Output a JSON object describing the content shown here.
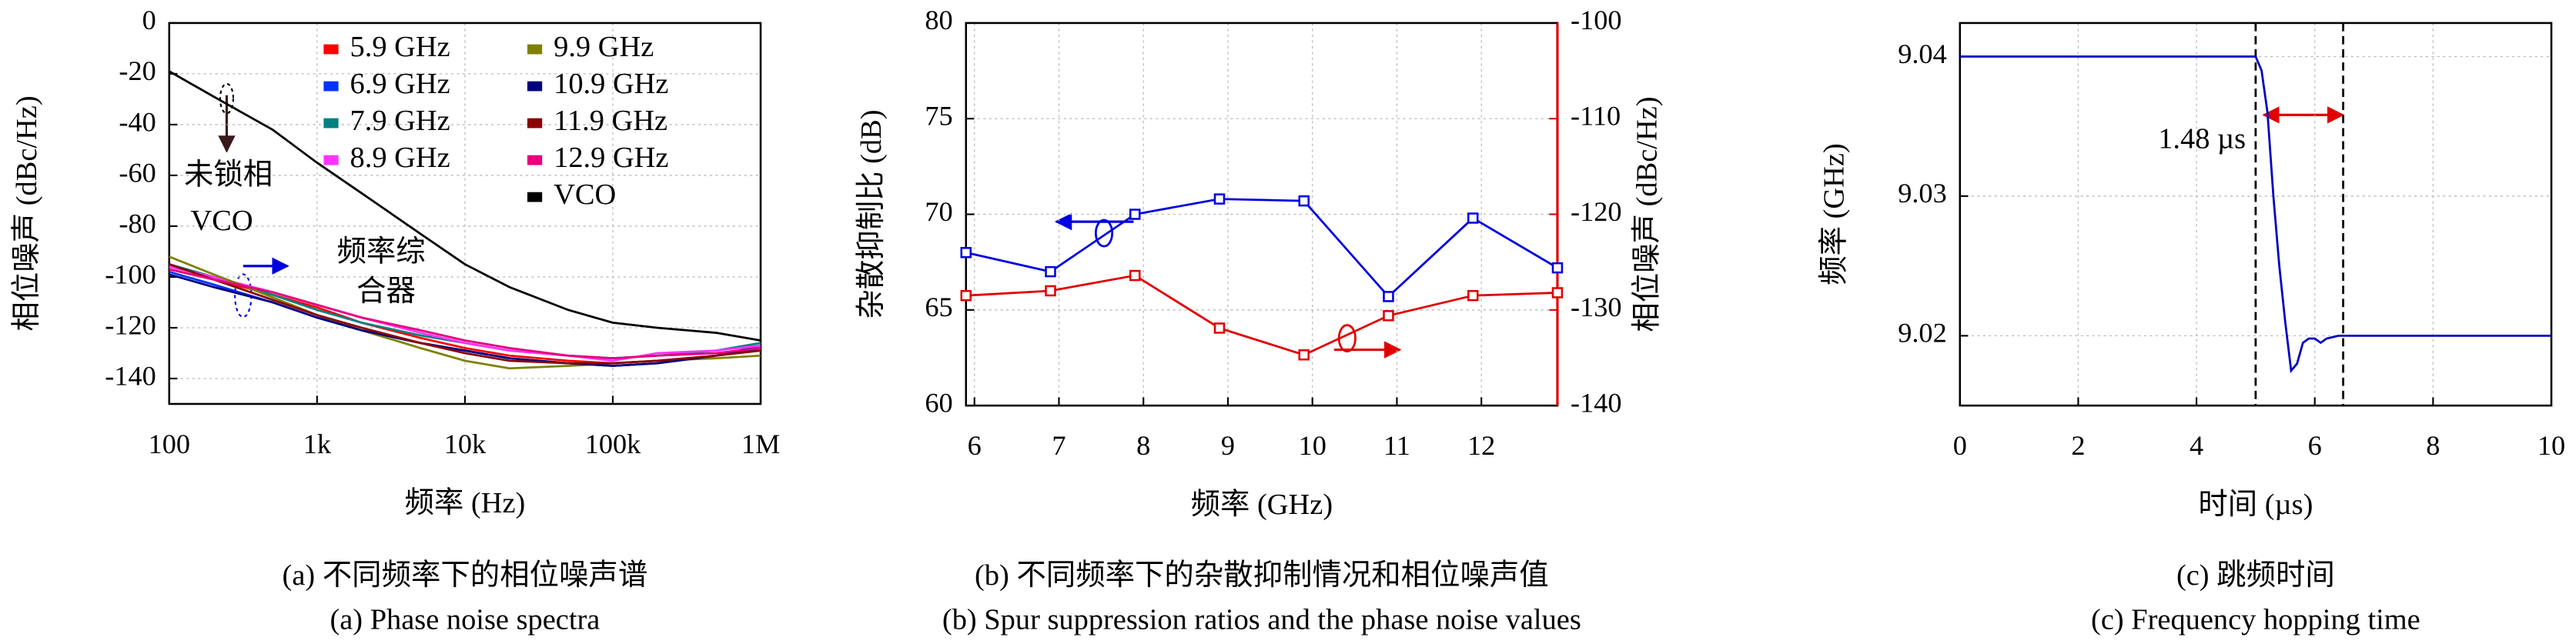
{
  "chart_data": [
    {
      "type": "line",
      "xscale": "log",
      "grid": true,
      "xlabel": "频率 (Hz)",
      "ylabel": "相位噪声 (dBc/Hz)",
      "xlim": [
        100,
        1000000
      ],
      "ylim": [
        -150,
        0
      ],
      "xticks": [
        100,
        {
          "value": 1000,
          "label": "1k"
        },
        {
          "value": 10000,
          "label": "10k"
        },
        {
          "value": 100000,
          "label": "100k"
        },
        {
          "value": 1000000,
          "label": "1M"
        }
      ],
      "yticks": [
        0,
        -20,
        -40,
        -60,
        -80,
        -100,
        -120,
        -140
      ],
      "x": [
        100,
        200,
        500,
        1000,
        2000,
        5000,
        10000,
        20000,
        50000,
        100000,
        200000,
        500000,
        1000000
      ],
      "series": [
        {
          "name": "5.9 GHz",
          "color": "#ff0000",
          "values": [
            -97,
            -101,
            -107,
            -112,
            -118,
            -124,
            -128,
            -131,
            -133,
            -134,
            -133,
            -131,
            -128
          ]
        },
        {
          "name": "6.9 GHz",
          "color": "#0033ff",
          "values": [
            -98,
            -103,
            -110,
            -116,
            -121,
            -126,
            -129,
            -132,
            -134,
            -135,
            -134,
            -131,
            -127
          ]
        },
        {
          "name": "7.9 GHz",
          "color": "#008080",
          "values": [
            -95,
            -100,
            -107,
            -113,
            -118,
            -123,
            -126,
            -129,
            -131,
            -132,
            -131,
            -129,
            -126
          ]
        },
        {
          "name": "8.9 GHz",
          "color": "#ff33ff",
          "values": [
            -96,
            -100,
            -106,
            -111,
            -116,
            -122,
            -126,
            -129,
            -131,
            -133,
            -130,
            -129,
            -127
          ]
        },
        {
          "name": "9.9 GHz",
          "color": "#808000",
          "values": [
            -92,
            -99,
            -108,
            -115,
            -121,
            -128,
            -133,
            -136,
            -135,
            -134,
            -133,
            -132,
            -131
          ]
        },
        {
          "name": "10.9 GHz",
          "color": "#000080",
          "values": [
            -99,
            -104,
            -110,
            -116,
            -121,
            -126,
            -129,
            -132,
            -134,
            -135,
            -134,
            -131,
            -128
          ]
        },
        {
          "name": "11.9 GHz",
          "color": "#8b0000",
          "values": [
            -95,
            -101,
            -109,
            -115,
            -120,
            -126,
            -130,
            -133,
            -134,
            -134,
            -133,
            -131,
            -129
          ]
        },
        {
          "name": "12.9 GHz",
          "color": "#e6007e",
          "values": [
            -97,
            -101,
            -106,
            -111,
            -116,
            -121,
            -125,
            -128,
            -131,
            -132,
            -131,
            -130,
            -128
          ]
        },
        {
          "name": "VCO",
          "color": "#000000",
          "values": [
            -19,
            -29,
            -42,
            -55,
            -67,
            -83,
            -95,
            -104,
            -113,
            -118,
            -120,
            -122,
            -125
          ]
        }
      ],
      "legend": "upper right",
      "annotations": [
        "未锁相",
        "VCO",
        "频率综",
        "合器"
      ],
      "caption": [
        "(a) 不同频率下的相位噪声谱",
        "(a) Phase noise spectra"
      ]
    },
    {
      "type": "line",
      "markers": "square",
      "grid": true,
      "xlabel": "频率 (GHz)",
      "ylabel": "杂散抑制比 (dB)",
      "y2label": "相位噪声 (dBc/Hz)",
      "y2color": "#e00000",
      "xlim": [
        5.9,
        12.9
      ],
      "ylim": [
        60,
        80
      ],
      "y2lim": [
        -140,
        -100
      ],
      "xticks": [
        6,
        7,
        8,
        9,
        10,
        11,
        12
      ],
      "yticks": [
        60,
        65,
        70,
        75,
        80
      ],
      "y2ticks": [
        -140,
        -130,
        -120,
        -110,
        -100
      ],
      "x": [
        5.9,
        6.9,
        7.9,
        8.9,
        9.9,
        10.9,
        11.9,
        12.9
      ],
      "series": [
        {
          "color": "#0000e0",
          "values": [
            68.0,
            67.0,
            70.0,
            70.8,
            70.7,
            65.7,
            69.8,
            67.2
          ]
        },
        {
          "color": "#e00000",
          "axis": "y2",
          "values": [
            -128.5,
            -128.0,
            -126.4,
            -131.9,
            -134.7,
            -130.6,
            -128.5,
            -128.2
          ]
        }
      ],
      "caption": [
        "(b) 不同频率下的杂散抑制情况和相位噪声值",
        "(b) Spur suppression ratios and the phase noise values"
      ]
    },
    {
      "type": "line",
      "grid": true,
      "xlabel": "时间 (µs)",
      "ylabel": "频率 (GHz)",
      "xlim": [
        0,
        10
      ],
      "ylim": [
        9.015,
        9.0424
      ],
      "xticks": [
        0,
        2,
        4,
        6,
        8,
        10
      ],
      "yticks": [
        9.02,
        9.03,
        9.04
      ],
      "x": [
        0,
        5.0,
        5.1,
        5.2,
        5.3,
        5.4,
        5.5,
        5.6,
        5.7,
        5.8,
        5.9,
        6.0,
        6.1,
        6.2,
        6.4,
        10
      ],
      "series": [
        {
          "color": "#0000c0",
          "values": [
            9.04,
            9.04,
            9.039,
            9.036,
            9.03,
            9.025,
            9.021,
            9.0175,
            9.018,
            9.0195,
            9.0198,
            9.0198,
            9.0195,
            9.0198,
            9.02,
            9.02
          ]
        }
      ],
      "vlines": [
        5.0,
        6.48
      ],
      "annotations": [
        "1.48 µs"
      ],
      "caption": [
        "(c) 跳频时间",
        "(c) Frequency hopping time"
      ]
    }
  ]
}
